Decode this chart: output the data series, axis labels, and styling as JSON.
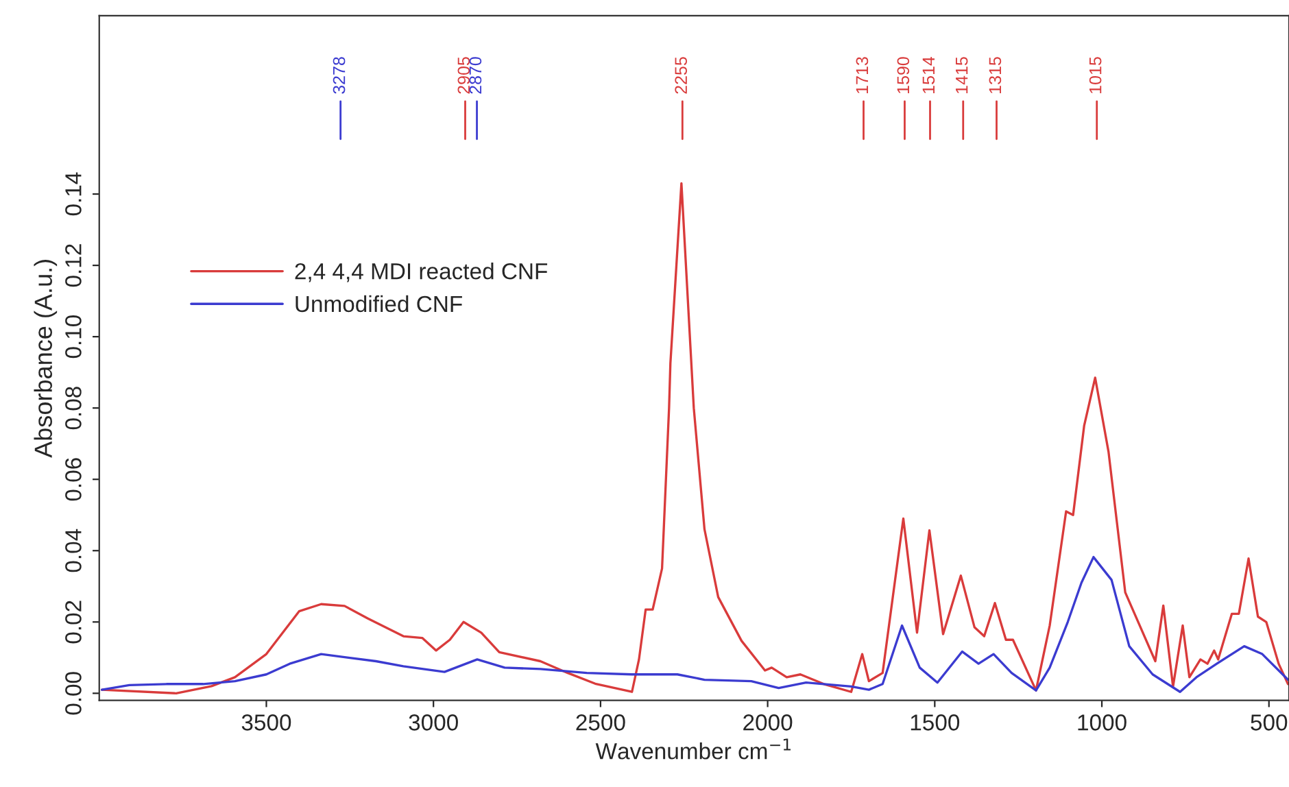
{
  "chart_data": {
    "type": "line",
    "xlabel": "Wavenumber cm$^{−1}$",
    "ylabel": "Absorbance (A.u.)",
    "xlim": [
      4000,
      440
    ],
    "ylim": [
      -0.002,
      0.19
    ],
    "xticks": [
      3500,
      3000,
      2500,
      2000,
      1500,
      1000,
      500
    ],
    "yticks": [
      {
        "value": 0,
        "label": "0.00"
      },
      {
        "value": 0.02,
        "label": "0.02"
      },
      {
        "value": 0.04,
        "label": "0.04"
      },
      {
        "value": 0.06,
        "label": "0.06"
      },
      {
        "value": 0.08,
        "label": "0.08"
      },
      {
        "value": 0.1,
        "label": "0.10"
      },
      {
        "value": 0.12,
        "label": "0.12"
      },
      {
        "value": 0.14,
        "label": "0.14"
      }
    ],
    "legend": "left",
    "grid": false,
    "line_style": "solid",
    "marker": "none",
    "series": [
      {
        "name": "2,4 4,4 MDI reacted CNF",
        "color": "#d93b3b",
        "x": [
          3992,
          3770,
          3664,
          3594,
          3500,
          3402,
          3336,
          3266,
          3197,
          3090,
          3033,
          2992,
          2951,
          2910,
          2857,
          2803,
          2680,
          2598,
          2516,
          2406,
          2385,
          2365,
          2344,
          2316,
          2295,
          2291,
          2258,
          2221,
          2189,
          2148,
          2078,
          2008,
          1988,
          1943,
          1902,
          1832,
          1750,
          1717,
          1697,
          1656,
          1594,
          1553,
          1516,
          1475,
          1422,
          1381,
          1352,
          1320,
          1287,
          1266,
          1197,
          1156,
          1107,
          1086,
          1053,
          1020,
          980,
          930,
          902,
          840,
          816,
          787,
          758,
          738,
          705,
          684,
          664,
          652,
          611,
          590,
          561,
          533,
          508,
          471,
          443
        ],
        "values": [
          0.001,
          0.0,
          0.002,
          0.0045,
          0.011,
          0.023,
          0.025,
          0.0245,
          0.021,
          0.016,
          0.0155,
          0.012,
          0.015,
          0.02,
          0.017,
          0.0115,
          0.009,
          0.0057,
          0.0027,
          0.0004,
          0.0095,
          0.0235,
          0.0235,
          0.035,
          0.08,
          0.0925,
          0.143,
          0.08,
          0.046,
          0.027,
          0.0147,
          0.0064,
          0.0072,
          0.0045,
          0.0053,
          0.0026,
          0.0004,
          0.011,
          0.0034,
          0.0057,
          0.049,
          0.017,
          0.0457,
          0.0166,
          0.033,
          0.0185,
          0.016,
          0.0253,
          0.015,
          0.015,
          0.0008,
          0.019,
          0.051,
          0.05,
          0.075,
          0.0885,
          0.0677,
          0.0283,
          0.0223,
          0.009,
          0.0246,
          0.0019,
          0.019,
          0.0045,
          0.0095,
          0.0083,
          0.012,
          0.0095,
          0.0223,
          0.0223,
          0.0378,
          0.0215,
          0.02,
          0.0083,
          0.0026
        ]
      },
      {
        "name": "Unmodified CNF",
        "color": "#3b3bd0",
        "x": [
          3992,
          3910,
          3799,
          3689,
          3594,
          3500,
          3430,
          3336,
          3254,
          3172,
          3090,
          2967,
          2869,
          2787,
          2680,
          2541,
          2406,
          2270,
          2189,
          2049,
          1967,
          1885,
          1750,
          1697,
          1656,
          1598,
          1545,
          1492,
          1418,
          1369,
          1324,
          1270,
          1197,
          1156,
          1102,
          1061,
          1025,
          971,
          918,
          848,
          766,
          717,
          656,
          574,
          520,
          443
        ],
        "values": [
          0.001,
          0.0023,
          0.0026,
          0.0026,
          0.0034,
          0.0053,
          0.0083,
          0.011,
          0.01,
          0.009,
          0.0076,
          0.006,
          0.0095,
          0.0072,
          0.0068,
          0.0057,
          0.0053,
          0.0053,
          0.0038,
          0.0034,
          0.0015,
          0.003,
          0.0019,
          0.001,
          0.0026,
          0.019,
          0.0072,
          0.003,
          0.0117,
          0.0083,
          0.011,
          0.0057,
          0.0008,
          0.0072,
          0.02,
          0.031,
          0.0382,
          0.0318,
          0.0132,
          0.0053,
          0.0004,
          0.0045,
          0.0083,
          0.0132,
          0.011,
          0.0038
        ]
      }
    ],
    "ref_lines": [
      {
        "axis": "x",
        "value": 3278,
        "label": "3278",
        "color": "#3b3bd0"
      },
      {
        "axis": "x",
        "value": 2905,
        "label": "2905",
        "color": "#d93b3b"
      },
      {
        "axis": "x",
        "value": 2870,
        "label": "2870",
        "color": "#3b3bd0"
      },
      {
        "axis": "x",
        "value": 2255,
        "label": "2255",
        "color": "#d93b3b"
      },
      {
        "axis": "x",
        "value": 1713,
        "label": "1713",
        "color": "#d93b3b"
      },
      {
        "axis": "x",
        "value": 1590,
        "label": "1590",
        "color": "#d93b3b"
      },
      {
        "axis": "x",
        "value": 1514,
        "label": "1514",
        "color": "#d93b3b"
      },
      {
        "axis": "x",
        "value": 1415,
        "label": "1415",
        "color": "#d93b3b"
      },
      {
        "axis": "x",
        "value": 1315,
        "label": "1315",
        "color": "#d93b3b"
      },
      {
        "axis": "x",
        "value": 1015,
        "label": "1015",
        "color": "#d93b3b"
      }
    ]
  }
}
